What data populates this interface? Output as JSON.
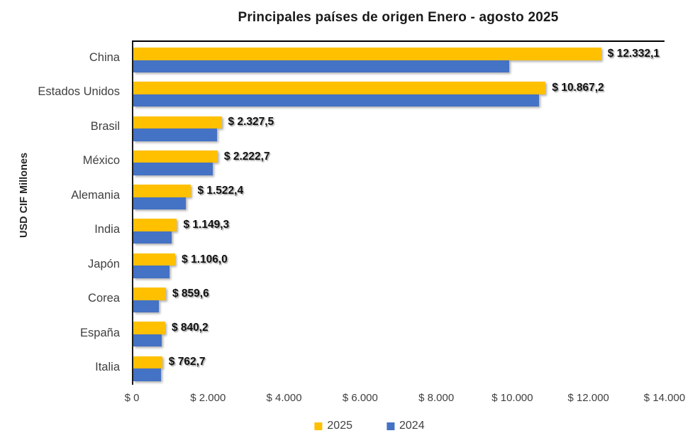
{
  "chart_data": {
    "type": "bar",
    "orientation": "horizontal",
    "title": "Principales países de origen Enero - agosto 2025",
    "ylabel": "USD CIF Millones",
    "xlabel": "",
    "categories": [
      "China",
      "Estados Unidos",
      "Brasil",
      "México",
      "Alemania",
      "India",
      "Japón",
      "Corea",
      "España",
      "Italia"
    ],
    "series": [
      {
        "name": "2025",
        "color": "#FFC000",
        "values": [
          12332.1,
          10867.2,
          2327.5,
          2222.7,
          1522.4,
          1149.3,
          1106.0,
          859.6,
          840.2,
          762.7
        ],
        "labels": [
          "$ 12.332,1",
          "$ 10.867,2",
          "$ 2.327,5",
          "$ 2.222,7",
          "$ 1.522,4",
          "$ 1.149,3",
          "$ 1.106,0",
          "$ 859,6",
          "$ 840,2",
          "$ 762,7"
        ]
      },
      {
        "name": "2024",
        "color": "#4472C4",
        "values_estimated_from_bar_lengths": true,
        "values": [
          9900,
          10700,
          2200,
          2090,
          1380,
          1000,
          950,
          670,
          745,
          720
        ]
      }
    ],
    "x_axis": {
      "min": 0,
      "max": 14000,
      "tick_labels": [
        "$ 0",
        "$ 2.000",
        "$ 4.000",
        "$ 6.000",
        "$ 8.000",
        "$ 10.000",
        "$ 12.000",
        "$ 14.000"
      ]
    },
    "legend": {
      "position": "bottom",
      "entries": [
        "2025",
        "2024"
      ]
    },
    "grid": false,
    "plot_border_color": "#000000",
    "background": "#ffffff"
  }
}
